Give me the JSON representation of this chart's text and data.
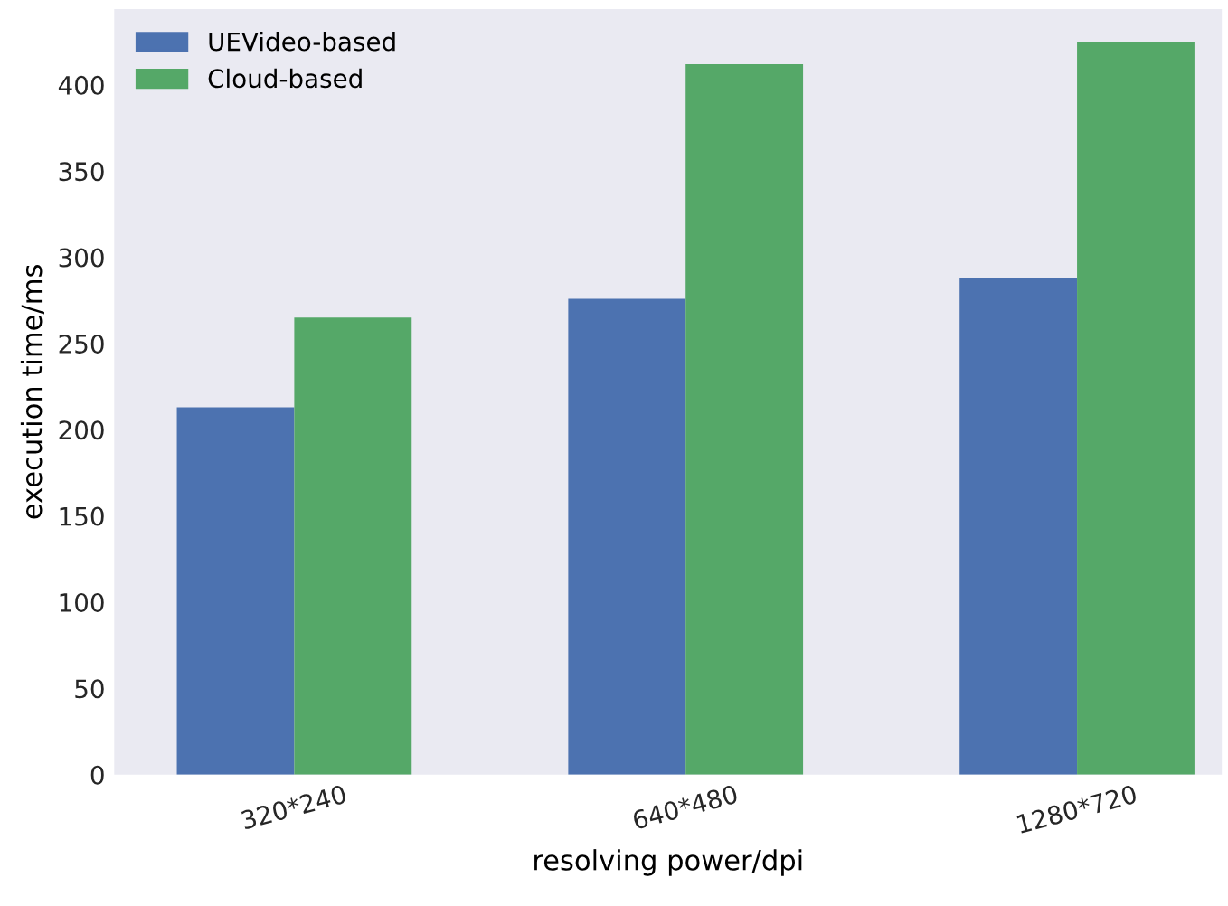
{
  "chart_data": {
    "type": "bar",
    "xlabel": "resolving power/dpi",
    "ylabel": "execution time/ms",
    "categories": [
      "320*240",
      "640*480",
      "1280*720"
    ],
    "series": [
      {
        "name": "UEVideo-based",
        "color": "#4c72b0",
        "values": [
          213,
          276,
          288
        ]
      },
      {
        "name": "Cloud-based",
        "color": "#55a868",
        "values": [
          265,
          412,
          425
        ]
      }
    ],
    "ylim": [
      0,
      444
    ],
    "yticks": [
      0,
      50,
      100,
      150,
      200,
      250,
      300,
      350,
      400
    ],
    "grid": false,
    "legend": "top left"
  }
}
